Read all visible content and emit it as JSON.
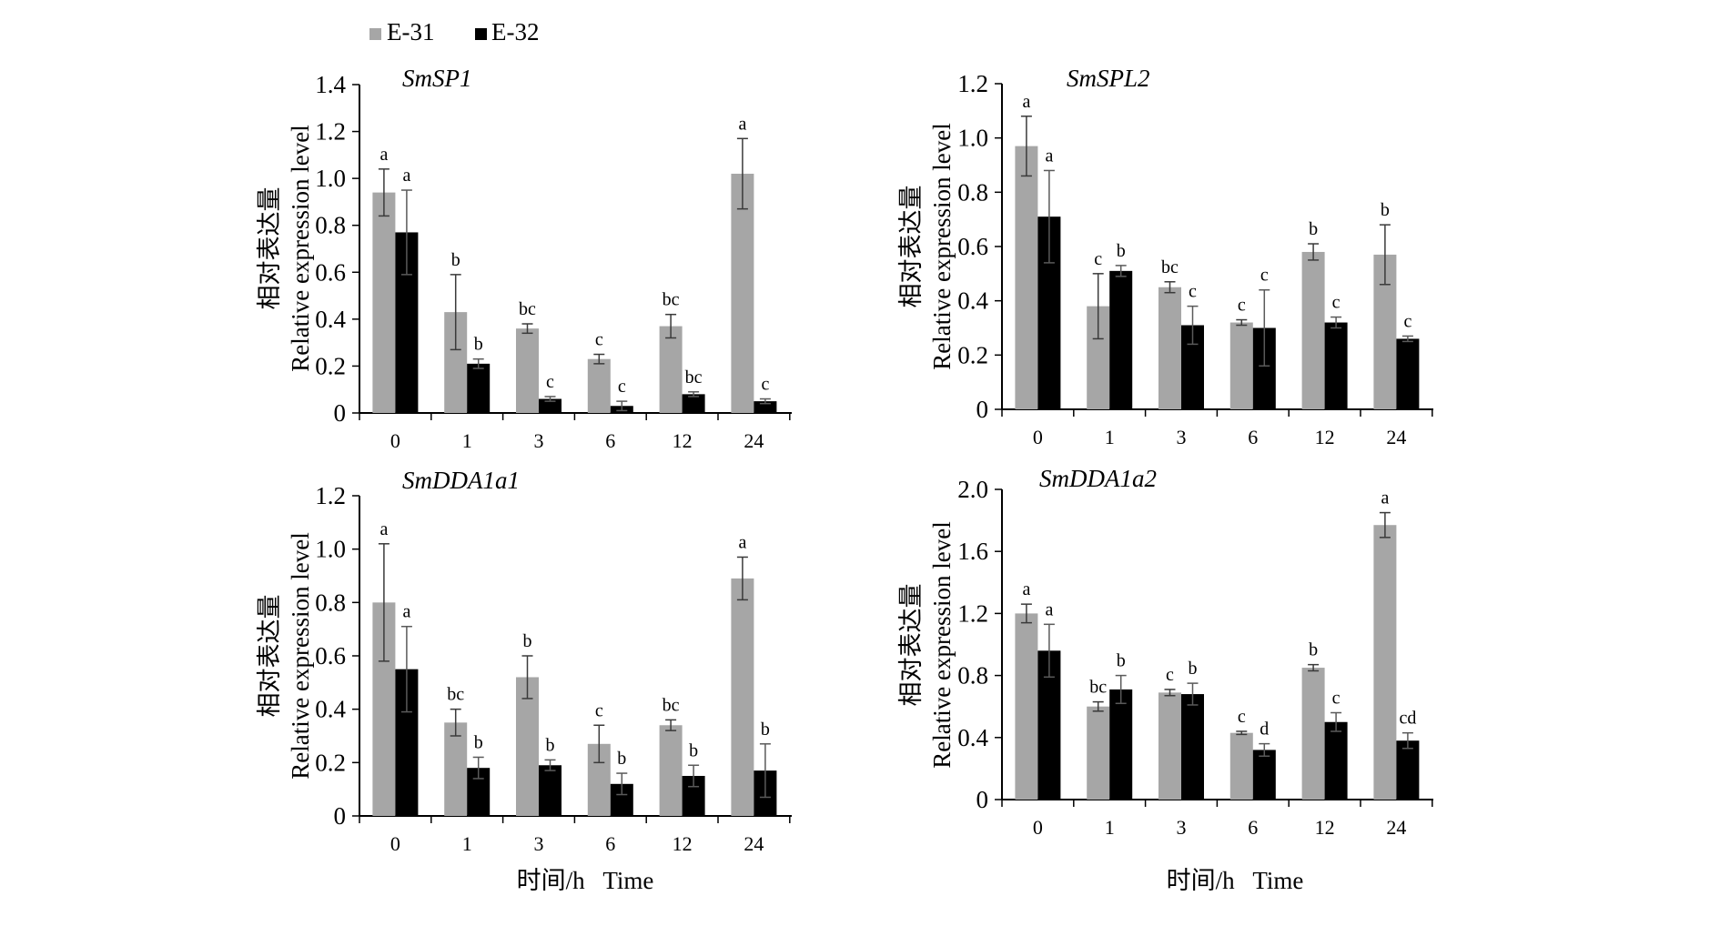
{
  "legend": [
    {
      "label": "E-31",
      "color": "#a6a6a6"
    },
    {
      "label": "E-32",
      "color": "#000000"
    }
  ],
  "xlabel": "时间/h   Time",
  "ylabel_zh": "相对表达量",
  "ylabel_en": "Relative expression level",
  "chart_data": [
    {
      "type": "bar",
      "title": "SmSP1",
      "categories": [
        "0",
        "1",
        "3",
        "6",
        "12",
        "24"
      ],
      "ylim": [
        0,
        1.4
      ],
      "yticks": [
        0,
        0.2,
        0.4,
        0.6,
        0.8,
        1.0,
        1.2,
        1.4
      ],
      "ytick_labels": [
        "0",
        "0.2",
        "0.4",
        "0.6",
        "0.8",
        "1.0",
        "1.2",
        "1.4"
      ],
      "series": [
        {
          "name": "E-31",
          "values": [
            0.94,
            0.43,
            0.36,
            0.23,
            0.37,
            1.02
          ],
          "errors": [
            0.1,
            0.16,
            0.02,
            0.02,
            0.05,
            0.15
          ],
          "letters": [
            "a",
            "b",
            "bc",
            "c",
            "bc",
            "a"
          ]
        },
        {
          "name": "E-32",
          "values": [
            0.77,
            0.21,
            0.06,
            0.03,
            0.08,
            0.05
          ],
          "errors": [
            0.18,
            0.02,
            0.01,
            0.02,
            0.01,
            0.01
          ],
          "letters": [
            "a",
            "b",
            "c",
            "c",
            "bc",
            "c"
          ]
        }
      ]
    },
    {
      "type": "bar",
      "title": "SmSPL2",
      "categories": [
        "0",
        "1",
        "3",
        "6",
        "12",
        "24"
      ],
      "ylim": [
        0,
        1.2
      ],
      "yticks": [
        0,
        0.2,
        0.4,
        0.6,
        0.8,
        1.0,
        1.2
      ],
      "ytick_labels": [
        "0",
        "0.2",
        "0.4",
        "0.6",
        "0.8",
        "1.0",
        "1.2"
      ],
      "series": [
        {
          "name": "E-31",
          "values": [
            0.97,
            0.38,
            0.45,
            0.32,
            0.58,
            0.57
          ],
          "errors": [
            0.11,
            0.12,
            0.02,
            0.01,
            0.03,
            0.11
          ],
          "letters": [
            "a",
            "c",
            "bc",
            "c",
            "b",
            "b"
          ]
        },
        {
          "name": "E-32",
          "values": [
            0.71,
            0.51,
            0.31,
            0.3,
            0.32,
            0.26
          ],
          "errors": [
            0.17,
            0.02,
            0.07,
            0.14,
            0.02,
            0.01
          ],
          "letters": [
            "a",
            "b",
            "c",
            "c",
            "c",
            "c"
          ]
        }
      ]
    },
    {
      "type": "bar",
      "title": "SmDDA1a1",
      "categories": [
        "0",
        "1",
        "3",
        "6",
        "12",
        "24"
      ],
      "ylim": [
        0,
        1.2
      ],
      "yticks": [
        0,
        0.2,
        0.4,
        0.6,
        0.8,
        1.0,
        1.2
      ],
      "ytick_labels": [
        "0",
        "0.2",
        "0.4",
        "0.6",
        "0.8",
        "1.0",
        "1.2"
      ],
      "series": [
        {
          "name": "E-31",
          "values": [
            0.8,
            0.35,
            0.52,
            0.27,
            0.34,
            0.89
          ],
          "errors": [
            0.22,
            0.05,
            0.08,
            0.07,
            0.02,
            0.08
          ],
          "letters": [
            "a",
            "bc",
            "b",
            "c",
            "bc",
            "a"
          ]
        },
        {
          "name": "E-32",
          "values": [
            0.55,
            0.18,
            0.19,
            0.12,
            0.15,
            0.17
          ],
          "errors": [
            0.16,
            0.04,
            0.02,
            0.04,
            0.04,
            0.1
          ],
          "letters": [
            "a",
            "b",
            "b",
            "b",
            "b",
            "b"
          ]
        }
      ]
    },
    {
      "type": "bar",
      "title": "SmDDA1a2",
      "categories": [
        "0",
        "1",
        "3",
        "6",
        "12",
        "24"
      ],
      "ylim": [
        0,
        2.0
      ],
      "yticks": [
        0,
        0.4,
        0.8,
        1.2,
        1.6,
        2.0
      ],
      "ytick_labels": [
        "0",
        "0.4",
        "0.8",
        "1.2",
        "1.6",
        "2.0"
      ],
      "series": [
        {
          "name": "E-31",
          "values": [
            1.2,
            0.6,
            0.69,
            0.43,
            0.85,
            1.77
          ],
          "errors": [
            0.06,
            0.03,
            0.02,
            0.01,
            0.02,
            0.08
          ],
          "letters": [
            "a",
            "bc",
            "c",
            "c",
            "b",
            "a"
          ]
        },
        {
          "name": "E-32",
          "values": [
            0.96,
            0.71,
            0.68,
            0.32,
            0.5,
            0.38
          ],
          "errors": [
            0.17,
            0.09,
            0.07,
            0.04,
            0.06,
            0.05
          ],
          "letters": [
            "a",
            "b",
            "b",
            "d",
            "c",
            "cd"
          ]
        }
      ]
    }
  ]
}
